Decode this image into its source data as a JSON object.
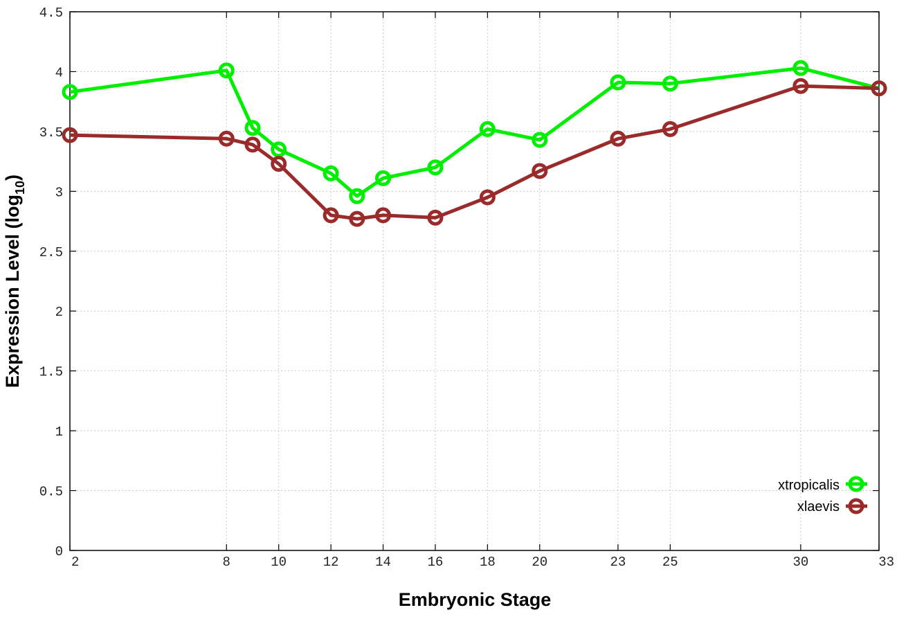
{
  "chart_data": {
    "type": "line",
    "xlabel": "Embryonic Stage",
    "ylabel": "Expression Level (log",
    "ylabel_sub": "10",
    "ylabel_end": ")",
    "x": [
      2,
      8,
      9,
      10,
      12,
      13,
      14,
      16,
      18,
      20,
      23,
      25,
      30,
      33
    ],
    "x_ticks": [
      2,
      8,
      10,
      12,
      14,
      16,
      18,
      20,
      23,
      25,
      30,
      33
    ],
    "y_ticks": [
      "0",
      "0.5",
      "1",
      "1.5",
      "2",
      "2.5",
      "3",
      "3.5",
      "4",
      "4.5"
    ],
    "xlim": [
      2,
      33
    ],
    "ylim": [
      0,
      4.5
    ],
    "grid": true,
    "legend_position": "bottom-right",
    "series": [
      {
        "name": "xtropicalis",
        "color": "#00ee00",
        "values": [
          3.83,
          4.01,
          3.53,
          3.35,
          3.15,
          2.96,
          3.11,
          3.2,
          3.52,
          3.43,
          3.91,
          3.9,
          4.03,
          3.86
        ]
      },
      {
        "name": "xlaevis",
        "color": "#9b2b2b",
        "values": [
          3.47,
          3.44,
          3.39,
          3.23,
          2.8,
          2.77,
          2.8,
          2.78,
          2.95,
          3.17,
          3.44,
          3.52,
          3.88,
          3.86
        ]
      }
    ]
  }
}
